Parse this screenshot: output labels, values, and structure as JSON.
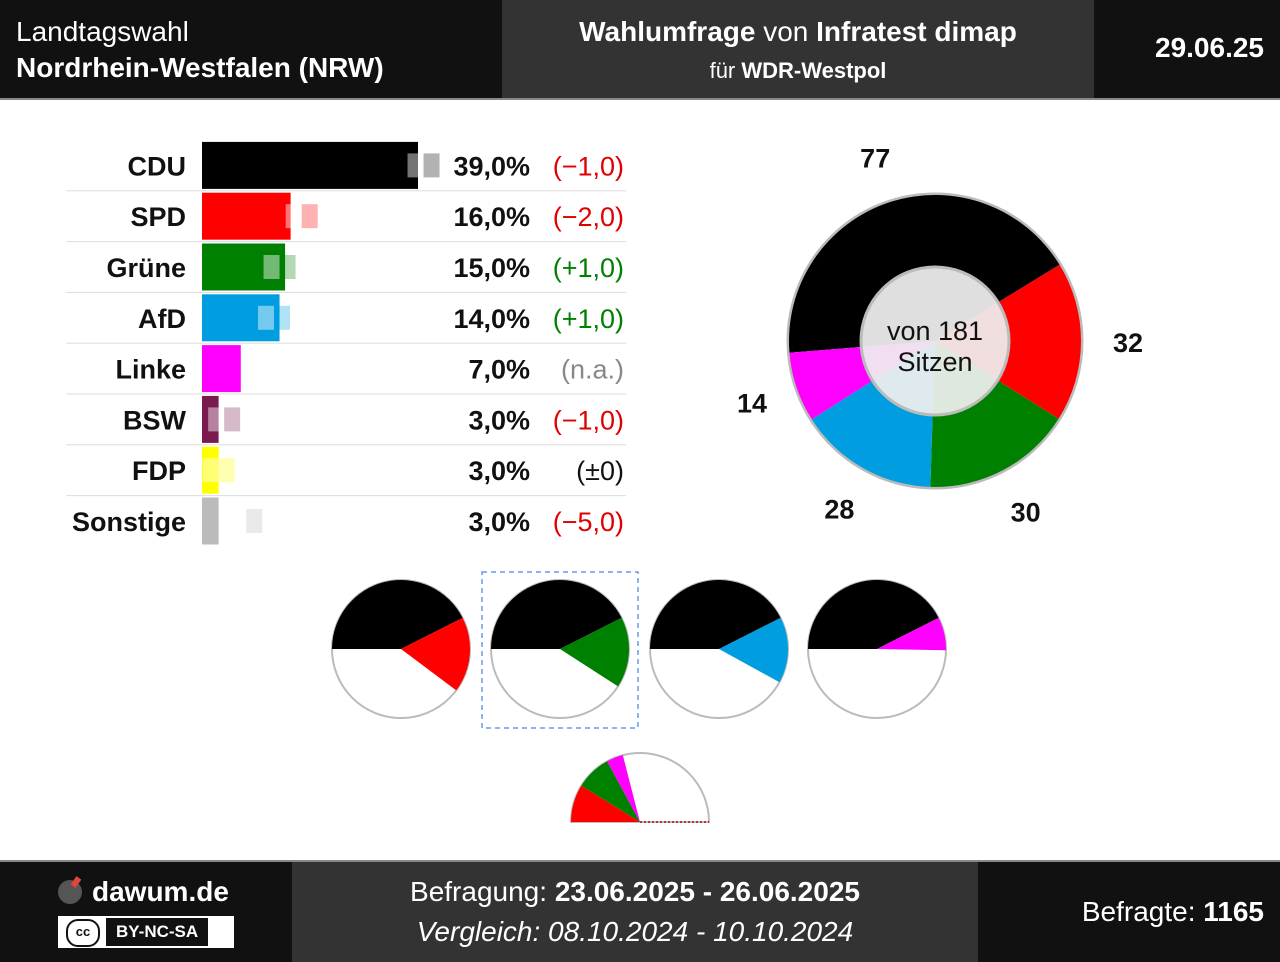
{
  "header": {
    "title_line1": "Landtagswahl",
    "title_line2": "Nordrhein-Westfalen (NRW)",
    "poll_title_part1": "Wahlumfrage",
    "poll_title_part2": " von ",
    "institute": "Infratest dimap",
    "client_prefix": "für ",
    "client": "WDR-Westpol",
    "date": "29.06.25"
  },
  "chart_data": [
    {
      "type": "bar",
      "categories": [
        "CDU",
        "SPD",
        "Grüne",
        "AfD",
        "Linke",
        "BSW",
        "FDP",
        "Sonstige"
      ],
      "values": [
        39.0,
        16.0,
        15.0,
        14.0,
        7.0,
        3.0,
        3.0,
        3.0
      ],
      "previous_values": [
        40.0,
        18.0,
        14.0,
        13.0,
        null,
        4.0,
        3.0,
        8.0
      ],
      "value_labels": [
        "39,0%",
        "16,0%",
        "15,0%",
        "14,0%",
        "7,0%",
        "3,0%",
        "3,0%",
        "3,0%"
      ],
      "change_labels": [
        "(−1,0)",
        "(−2,0)",
        "(+1,0)",
        "(+1,0)",
        "(n.a.)",
        "(−1,0)",
        "(±0)",
        "(−5,0)"
      ],
      "change_colors": [
        "#e00000",
        "#e00000",
        "#008000",
        "#008000",
        "#888888",
        "#e00000",
        "#111111",
        "#e00000"
      ],
      "colors": [
        "#000000",
        "#ff0000",
        "#008000",
        "#009ee0",
        "#ff00ff",
        "#7a1a4f",
        "#ffff00",
        "#bbbbbb"
      ]
    },
    {
      "type": "pie",
      "subtype": "donut",
      "categories": [
        "CDU",
        "SPD",
        "Grüne",
        "AfD",
        "Linke"
      ],
      "values": [
        77,
        32,
        30,
        28,
        14
      ],
      "colors": [
        "#000000",
        "#ff0000",
        "#008000",
        "#009ee0",
        "#ff00ff"
      ],
      "center_line1": "von 181",
      "center_line2": "Sitzen",
      "total": 181
    },
    {
      "type": "pie",
      "subtype": "coalitions",
      "majority": 91,
      "selected_index": 1,
      "items": [
        {
          "parties": [
            "CDU",
            "SPD"
          ],
          "seats": [
            77,
            32
          ]
        },
        {
          "parties": [
            "CDU",
            "Grüne"
          ],
          "seats": [
            77,
            30
          ]
        },
        {
          "parties": [
            "CDU",
            "AfD"
          ],
          "seats": [
            77,
            28
          ]
        },
        {
          "parties": [
            "CDU",
            "Linke"
          ],
          "seats": [
            77,
            14
          ]
        }
      ]
    },
    {
      "type": "pie",
      "subtype": "half-pie",
      "parties": [
        "SPD",
        "Grüne",
        "Linke"
      ],
      "seats": [
        32,
        30,
        14
      ],
      "total": 181
    }
  ],
  "footer": {
    "site": "dawum.de",
    "license_icon": "cc",
    "license": "BY-NC-SA",
    "survey_label": "Befragung: ",
    "survey_dates": "23.06.2025 - 26.06.2025",
    "compare_label": "Vergleich: ",
    "compare_dates": "08.10.2024 - 10.10.2024",
    "respondents_label": "Befragte: ",
    "respondents": "1165"
  }
}
